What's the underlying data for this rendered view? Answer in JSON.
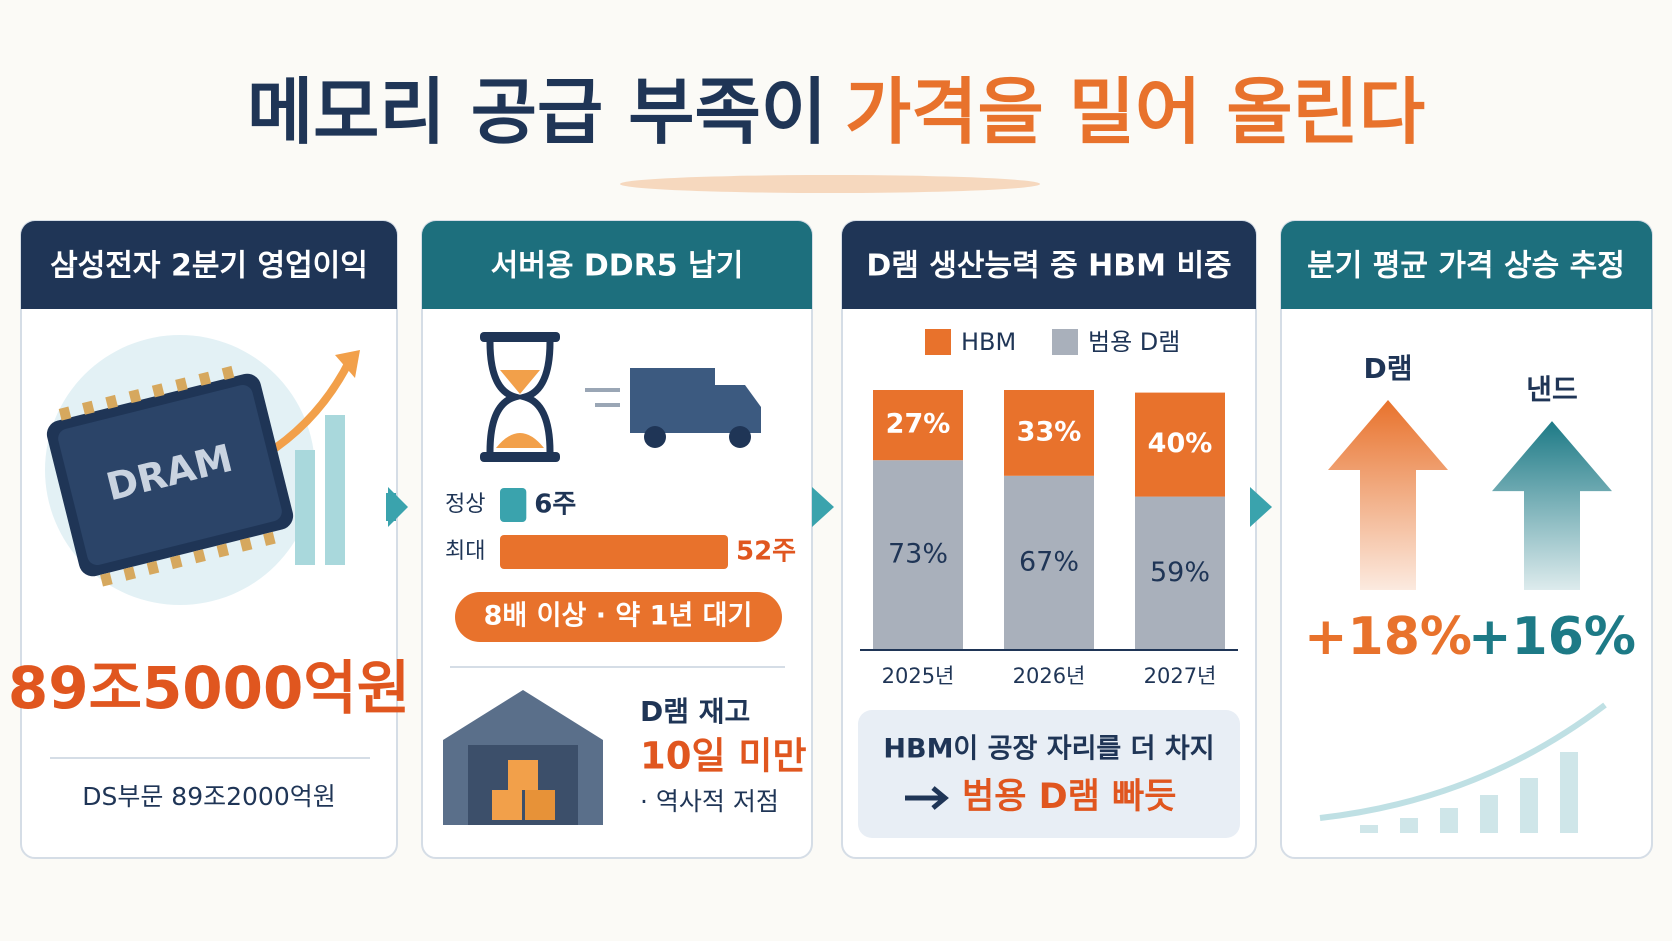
{
  "title": {
    "part1": "메모리 공급 부족이",
    "part2": "가격을 밀어 올린다"
  },
  "panels": [
    {
      "header": "삼성전자 2분기 영업이익",
      "chip": "DRAM",
      "main": "89조5000억원",
      "sub": "DS부문 89조2000억원"
    },
    {
      "header": "서버용 DDR5 납기",
      "lead": [
        {
          "label": "정상",
          "value": 6,
          "value_label": "6주"
        },
        {
          "label": "최대",
          "value": 52,
          "value_label": "52주"
        }
      ],
      "pill": "8배 이상 · 약 1년 대기",
      "inventory": {
        "title": "D램 재고",
        "highlight": "10일 미만",
        "note": "· 역사적 저점"
      }
    },
    {
      "header": "D램 생산능력 중 HBM 비중",
      "chart": {
        "categories": [
          "2025년",
          "2026년",
          "2027년"
        ],
        "series": [
          {
            "name": "HBM",
            "color": "#e8722c",
            "values": [
              27,
              33,
              40
            ],
            "value_labels": [
              "27%",
              "33%",
              "40%"
            ]
          },
          {
            "name": "범용 D램",
            "color": "#a9b0bb",
            "values": [
              73,
              67,
              59
            ],
            "value_labels": [
              "73%",
              "67%",
              "59%"
            ]
          }
        ]
      },
      "callout": {
        "line1": "HBM이 공장 자리를 더 차지",
        "line2": "범용 D램 빠듯"
      }
    },
    {
      "header": "분기 평균 가격 상승 추정",
      "items": [
        {
          "label": "D램",
          "value": 18,
          "value_label": "+18%",
          "color": "#e8722c"
        },
        {
          "label": "낸드",
          "value": 16,
          "value_label": "+16%",
          "color": "#1d7a86"
        }
      ]
    }
  ]
}
